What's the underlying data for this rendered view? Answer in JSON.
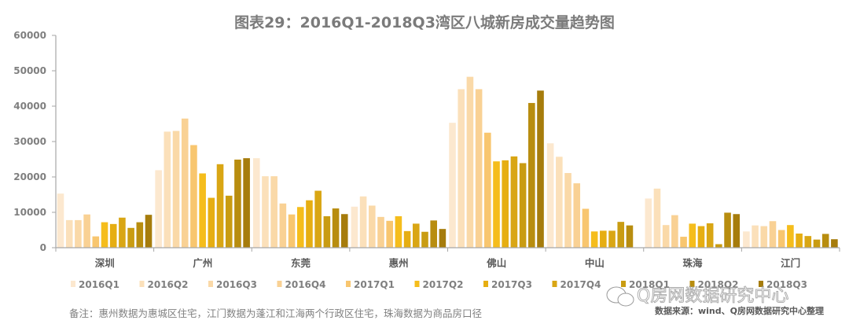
{
  "chart_data": {
    "type": "bar",
    "title": "图表29：2016Q1-2018Q3湾区八城新房成交量趋势图",
    "xlabel": "",
    "ylabel": "",
    "ylim": [
      0,
      60000
    ],
    "yticks": [
      "0",
      "10000",
      "20000",
      "30000",
      "40000",
      "50000",
      "60000"
    ],
    "grid": false,
    "legend_position": "bottom",
    "categories": [
      "深圳",
      "广州",
      "东莞",
      "惠州",
      "佛山",
      "中山",
      "珠海",
      "江门"
    ],
    "series": [
      {
        "name": "2016Q1",
        "color": "#fce8cf",
        "values": [
          15300,
          21900,
          25300,
          11600,
          35300,
          29500,
          13900,
          4600
        ]
      },
      {
        "name": "2016Q2",
        "color": "#fbe0ba",
        "values": [
          7800,
          32800,
          20200,
          14500,
          44800,
          25700,
          16700,
          6300
        ]
      },
      {
        "name": "2016Q3",
        "color": "#fad9a8",
        "values": [
          7800,
          33000,
          20200,
          11900,
          48300,
          21100,
          6400,
          6100
        ]
      },
      {
        "name": "2016Q4",
        "color": "#f9d194",
        "values": [
          9400,
          36500,
          12500,
          8700,
          44800,
          18200,
          9200,
          7500
        ]
      },
      {
        "name": "2017Q1",
        "color": "#f8c66f",
        "values": [
          3200,
          29000,
          9400,
          7600,
          32500,
          11000,
          3100,
          5000
        ]
      },
      {
        "name": "2017Q2",
        "color": "#f5bd1c",
        "values": [
          7200,
          21000,
          11500,
          8900,
          24400,
          4600,
          6800,
          6400
        ]
      },
      {
        "name": "2017Q3",
        "color": "#e6ae12",
        "values": [
          6700,
          14100,
          13400,
          4700,
          24700,
          4800,
          6100,
          4000
        ]
      },
      {
        "name": "2017Q4",
        "color": "#d9a614",
        "values": [
          8500,
          23600,
          16100,
          6800,
          25800,
          4800,
          6900,
          3300
        ]
      },
      {
        "name": "2018Q1",
        "color": "#c99c12",
        "values": [
          5600,
          14700,
          8900,
          4500,
          23900,
          7300,
          1000,
          2300
        ]
      },
      {
        "name": "2018Q2",
        "color": "#b88d0f",
        "values": [
          7200,
          24900,
          11100,
          7700,
          40900,
          6300,
          9900,
          3900
        ]
      },
      {
        "name": "2018Q3",
        "color": "#a67c0c",
        "values": [
          9300,
          25300,
          9500,
          5300,
          44400,
          null,
          9500,
          2400
        ]
      }
    ]
  },
  "note": "备注：惠州数据为惠城区住宅，江门数据为蓬江和江海两个行政区住宅，珠海数据为商品房口径",
  "source": "数据来源：wind、Q房网数据研究中心整理",
  "watermark": "Q房网数据研究中心"
}
